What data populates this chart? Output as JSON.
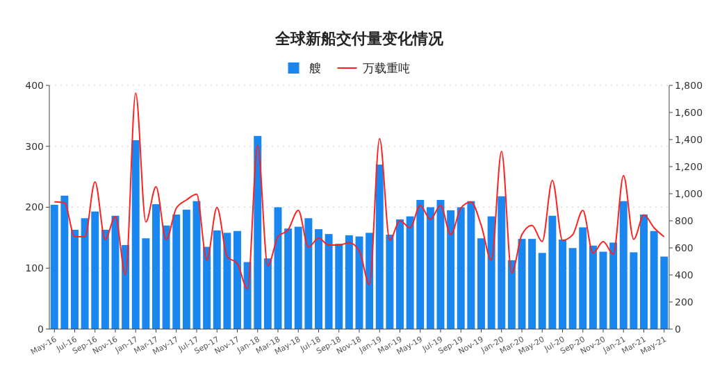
{
  "chart_data": {
    "type": "bar",
    "title": "全球新船交付量变化情况",
    "categories": [
      "May-16",
      null,
      "Jul-16",
      null,
      "Sep-16",
      null,
      "Nov-16",
      null,
      "Jan-17",
      null,
      "Mar-17",
      null,
      "May-17",
      null,
      "Jul-17",
      null,
      "Sep-17",
      null,
      "Nov-17",
      null,
      "Jan-18",
      null,
      "Mar-18",
      null,
      "May-18",
      null,
      "Jul-18",
      null,
      "Sep-18",
      null,
      "Nov-18",
      null,
      "Jan-19",
      null,
      "Mar-19",
      null,
      "May-19",
      null,
      "Jul-19",
      null,
      "Sep-19",
      null,
      "Nov-19",
      null,
      "Jan-20",
      null,
      "Mar-20",
      null,
      "May-20",
      null,
      "Jul-20",
      null,
      "Sep-20",
      null,
      "Nov-20",
      null,
      "Jan-21",
      null,
      "Mar-21",
      null,
      "May-21"
    ],
    "series": [
      {
        "name": "艘",
        "color": "#1a87f0",
        "values": [
          204,
          219,
          163,
          182,
          193,
          163,
          186,
          138,
          310,
          149,
          205,
          170,
          188,
          196,
          210,
          135,
          162,
          158,
          161,
          110,
          317,
          116,
          200,
          165,
          168,
          182,
          164,
          156,
          140,
          154,
          152,
          158,
          270,
          155,
          180,
          185,
          212,
          200,
          212,
          195,
          200,
          210,
          149,
          185,
          218,
          113,
          148,
          148,
          125,
          186,
          147,
          133,
          167,
          137,
          127,
          142,
          210,
          126,
          188,
          161,
          119
        ]
      },
      {
        "name": "万载重吨",
        "type": "line",
        "axis": "y2",
        "color": "#ff2020",
        "values": [
          940,
          933,
          682,
          682,
          1087,
          663,
          831,
          400,
          1743,
          791,
          1051,
          661,
          894,
          954,
          996,
          509,
          899,
          535,
          484,
          297,
          1355,
          467,
          682,
          733,
          877,
          605,
          672,
          620,
          620,
          638,
          579,
          330,
          1407,
          656,
          800,
          749,
          913,
          810,
          913,
          697,
          894,
          938,
          766,
          509,
          1313,
          415,
          697,
          766,
          646,
          1099,
          656,
          697,
          877,
          561,
          646,
          553,
          1133,
          663,
          843,
          749,
          682
        ]
      }
    ],
    "ylim": [
      0,
      400
    ],
    "yticks": [
      0,
      100,
      200,
      300,
      400
    ],
    "y2lim": [
      0,
      1800
    ],
    "y2ticks": [
      0,
      200,
      400,
      600,
      800,
      {
        "value": 1000,
        "label": "1,000"
      },
      {
        "value": 1200,
        "label": "1,200"
      },
      {
        "value": 1400,
        "label": "1,400"
      },
      {
        "value": 1600,
        "label": "1,600"
      },
      {
        "value": 1800,
        "label": "1,800"
      }
    ],
    "grid": "y",
    "legend": "top"
  }
}
